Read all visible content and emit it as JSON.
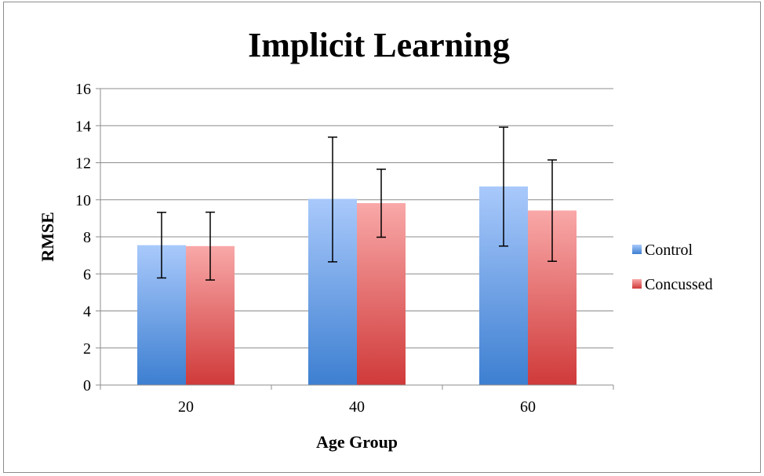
{
  "chart_data": {
    "type": "bar",
    "title": "Implicit Learning",
    "xlabel": "Age Group",
    "ylabel": "RMSE",
    "categories": [
      "20",
      "40",
      "60"
    ],
    "ylim": [
      0,
      16
    ],
    "yticks": [
      "0",
      "2",
      "4",
      "6",
      "8",
      "10",
      "12",
      "14",
      "16"
    ],
    "grid": true,
    "legend_position": "right",
    "series": [
      {
        "name": "Control",
        "values": [
          7.55,
          10.05,
          10.72
        ],
        "error_low": [
          5.78,
          6.65,
          7.5
        ],
        "error_high": [
          9.32,
          13.38,
          13.92
        ],
        "color_top": "#a9c9fb",
        "color_bottom": "#3d7fd1"
      },
      {
        "name": "Concussed",
        "values": [
          7.5,
          9.82,
          9.42
        ],
        "error_low": [
          5.67,
          7.98,
          6.68
        ],
        "error_high": [
          9.33,
          11.65,
          12.15
        ],
        "color_top": "#f9a8a8",
        "color_bottom": "#d03a3a"
      }
    ]
  }
}
